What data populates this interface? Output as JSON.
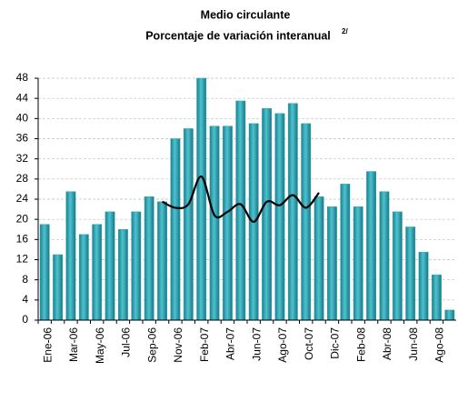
{
  "chart_data": {
    "type": "bar",
    "title": "Medio circulante",
    "subtitle": "Porcentaje de variación interanual",
    "subtitle_superscript": "2/",
    "categories": [
      "Ene-06",
      null,
      "Mar-06",
      null,
      "May-06",
      null,
      "Jul-06",
      null,
      "Sep-06",
      null,
      "Nov-06",
      null,
      "Feb-07",
      null,
      "Abr-07",
      null,
      "Jun-07",
      null,
      "Ago-07",
      null,
      "Oct-07",
      null,
      "Dic-07",
      null,
      "Feb-08",
      null,
      "Abr-08",
      null,
      "Jun-08",
      null,
      "Ago-08",
      null
    ],
    "series": [
      {
        "color": "#2fa9b8",
        "values": [
          19,
          13,
          25.5,
          17,
          19,
          21.5,
          18,
          21.5,
          24.5,
          23.5,
          36,
          38,
          48,
          38.5,
          38.5,
          43.5,
          39,
          42,
          41,
          43,
          39,
          24.5,
          22.5,
          27,
          22.5,
          29.5,
          25.5,
          21.5,
          18.5,
          13.5,
          9,
          2
        ]
      },
      {
        "type": "line",
        "color": "#000000",
        "values": [
          null,
          null,
          null,
          null,
          null,
          null,
          null,
          null,
          null,
          23.5,
          22.3,
          23,
          28.5,
          20.8,
          21.5,
          23,
          19.5,
          23.5,
          22.8,
          24.8,
          22.3,
          25.3,
          null,
          null,
          null,
          null,
          null,
          null,
          null,
          null,
          null,
          null
        ]
      }
    ],
    "ylim": [
      0,
      48
    ],
    "yticks": [
      0,
      4,
      8,
      12,
      16,
      20,
      24,
      28,
      32,
      36,
      40,
      44,
      48
    ],
    "grid": true
  }
}
